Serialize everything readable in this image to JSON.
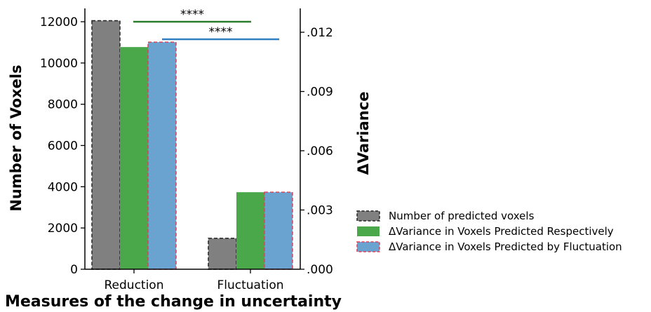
{
  "chart_data": {
    "type": "bar",
    "categories": [
      "Reduction",
      "Fluctuation"
    ],
    "xlabel": "Measures of the change in uncertainty",
    "ylabel_left": "Number of Voxels",
    "ylabel_right": "ΔVariance",
    "ylim_left": [
      0,
      12000
    ],
    "ylim_right": [
      0,
      0.012
    ],
    "left_ticks": [
      {
        "value": 0,
        "label": "0"
      },
      {
        "value": 2000,
        "label": "2000"
      },
      {
        "value": 4000,
        "label": "4000"
      },
      {
        "value": 6000,
        "label": "6000"
      },
      {
        "value": 8000,
        "label": "8000"
      },
      {
        "value": 10000,
        "label": "10000"
      },
      {
        "value": 12000,
        "label": "12000"
      }
    ],
    "right_ticks": [
      {
        "value": 0,
        "label": ".000"
      },
      {
        "value": 0.003,
        "label": ".003"
      },
      {
        "value": 0.006,
        "label": ".006"
      },
      {
        "value": 0.009,
        "label": ".009"
      },
      {
        "value": 0.012,
        "label": ".012"
      }
    ],
    "series": [
      {
        "name": "Number of predicted voxels",
        "axis": "left",
        "color": "#808080",
        "edge": "#222222",
        "values": [
          12050,
          1500
        ]
      },
      {
        "name": "ΔVariance in Voxels Predicted Respectively",
        "axis": "right",
        "color": "#4aa84a",
        "edge": "#4aa84a",
        "values": [
          0.01125,
          0.0039
        ]
      },
      {
        "name": "ΔVariance in Voxels Predicted by Fluctuation",
        "axis": "right",
        "color": "#6aa3d0",
        "edge": "#e0415c",
        "values": [
          0.0115,
          0.0039
        ]
      }
    ],
    "significance": [
      {
        "label": "****",
        "color": "#2a7d2a"
      },
      {
        "label": "****",
        "color": "#2f7fc2"
      }
    ],
    "legend_position": "lower-right outside"
  }
}
